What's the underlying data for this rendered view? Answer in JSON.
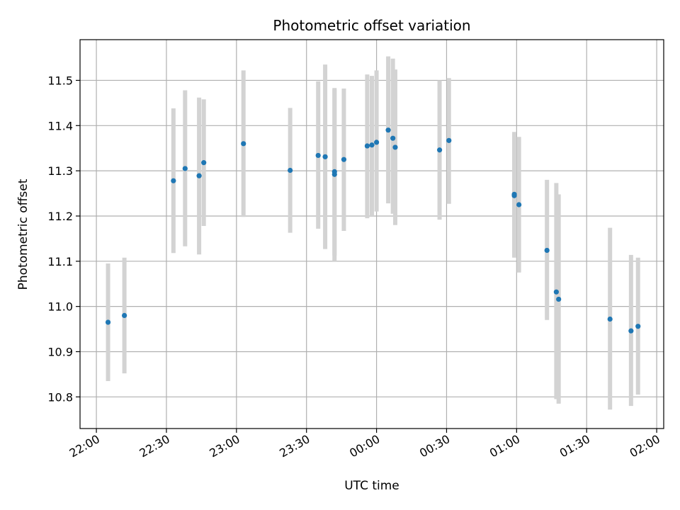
{
  "chart_data": {
    "type": "scatter",
    "title": "Photometric offset variation",
    "xlabel": "UTC time",
    "ylabel": "Photometric offset",
    "x_ticks": [
      "22:00",
      "22:30",
      "23:00",
      "23:30",
      "00:00",
      "00:30",
      "01:00",
      "01:30",
      "02:00"
    ],
    "y_ticks": [
      "10.8",
      "10.9",
      "11.0",
      "11.1",
      "11.2",
      "11.3",
      "11.4",
      "11.5"
    ],
    "xlim": [
      "21:53",
      "02:03"
    ],
    "ylim": [
      10.73,
      11.59
    ],
    "grid": true,
    "colors": {
      "point": "#1f77b4",
      "errorbar": "#d3d3d3",
      "grid": "#b0b0b0"
    },
    "points": [
      {
        "t": "22:05",
        "y": 10.965,
        "lo": 10.835,
        "hi": 11.095
      },
      {
        "t": "22:12",
        "y": 10.98,
        "lo": 10.852,
        "hi": 11.108
      },
      {
        "t": "22:33",
        "y": 11.278,
        "lo": 11.118,
        "hi": 11.438
      },
      {
        "t": "22:38",
        "y": 11.305,
        "lo": 11.133,
        "hi": 11.478
      },
      {
        "t": "22:44",
        "y": 11.289,
        "lo": 11.115,
        "hi": 11.462
      },
      {
        "t": "22:46",
        "y": 11.318,
        "lo": 11.178,
        "hi": 11.458
      },
      {
        "t": "23:03",
        "y": 11.36,
        "lo": 11.198,
        "hi": 11.522
      },
      {
        "t": "23:23",
        "y": 11.301,
        "lo": 11.163,
        "hi": 11.439
      },
      {
        "t": "23:35",
        "y": 11.334,
        "lo": 11.172,
        "hi": 11.498
      },
      {
        "t": "23:38",
        "y": 11.331,
        "lo": 11.127,
        "hi": 11.535
      },
      {
        "t": "23:42",
        "y": 11.298,
        "lo": 11.113,
        "hi": 11.483
      },
      {
        "t": "23:42",
        "y": 11.292,
        "lo": 11.1,
        "hi": 11.48
      },
      {
        "t": "23:46",
        "y": 11.325,
        "lo": 11.167,
        "hi": 11.482
      },
      {
        "t": "23:56",
        "y": 11.355,
        "lo": 11.195,
        "hi": 11.513
      },
      {
        "t": "23:58",
        "y": 11.357,
        "lo": 11.2,
        "hi": 11.51
      },
      {
        "t": "00:00",
        "y": 11.363,
        "lo": 11.21,
        "hi": 11.522
      },
      {
        "t": "00:05",
        "y": 11.39,
        "lo": 11.228,
        "hi": 11.553
      },
      {
        "t": "00:07",
        "y": 11.372,
        "lo": 11.205,
        "hi": 11.548
      },
      {
        "t": "00:08",
        "y": 11.352,
        "lo": 11.18,
        "hi": 11.524
      },
      {
        "t": "00:27",
        "y": 11.346,
        "lo": 11.192,
        "hi": 11.5
      },
      {
        "t": "00:31",
        "y": 11.367,
        "lo": 11.227,
        "hi": 11.505
      },
      {
        "t": "00:59",
        "y": 11.248,
        "lo": 11.108,
        "hi": 11.386
      },
      {
        "t": "00:59",
        "y": 11.245,
        "lo": 11.11,
        "hi": 11.38
      },
      {
        "t": "01:01",
        "y": 11.225,
        "lo": 11.075,
        "hi": 11.375
      },
      {
        "t": "01:13",
        "y": 11.124,
        "lo": 10.97,
        "hi": 11.28
      },
      {
        "t": "01:17",
        "y": 11.032,
        "lo": 10.795,
        "hi": 11.273
      },
      {
        "t": "01:18",
        "y": 11.016,
        "lo": 10.785,
        "hi": 11.248
      },
      {
        "t": "01:40",
        "y": 10.972,
        "lo": 10.772,
        "hi": 11.174
      },
      {
        "t": "01:49",
        "y": 10.946,
        "lo": 10.78,
        "hi": 11.114
      },
      {
        "t": "01:52",
        "y": 10.956,
        "lo": 10.805,
        "hi": 11.108
      }
    ]
  }
}
